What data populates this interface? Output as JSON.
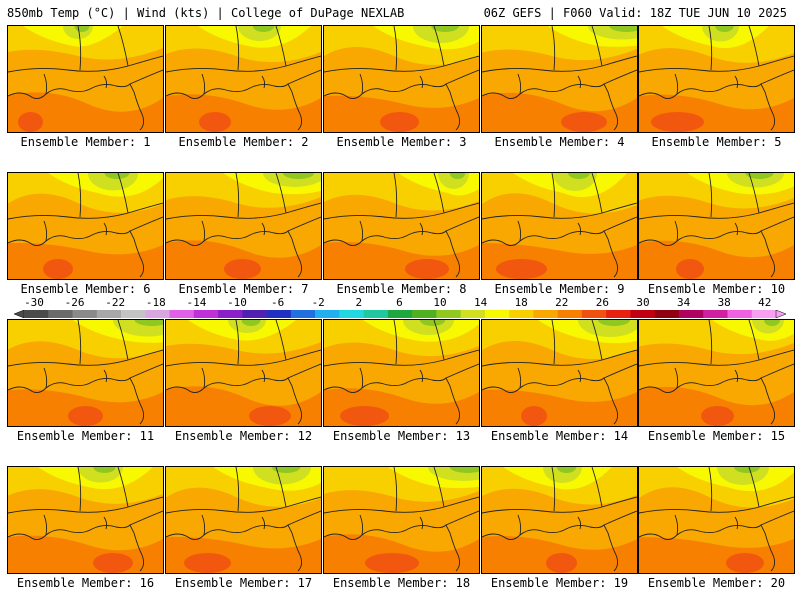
{
  "header": {
    "left": "850mb Temp (°C) | Wind (kts) | College of DuPage NEXLAB",
    "right": "06Z GEFS | F060 Valid: 18Z TUE JUN 10 2025"
  },
  "members": [
    {
      "label": "Ensemble Member: 1"
    },
    {
      "label": "Ensemble Member: 2"
    },
    {
      "label": "Ensemble Member: 3"
    },
    {
      "label": "Ensemble Member: 4"
    },
    {
      "label": "Ensemble Member: 5"
    },
    {
      "label": "Ensemble Member: 6"
    },
    {
      "label": "Ensemble Member: 7"
    },
    {
      "label": "Ensemble Member: 8"
    },
    {
      "label": "Ensemble Member: 9"
    },
    {
      "label": "Ensemble Member: 10"
    },
    {
      "label": "Ensemble Member: 11"
    },
    {
      "label": "Ensemble Member: 12"
    },
    {
      "label": "Ensemble Member: 13"
    },
    {
      "label": "Ensemble Member: 14"
    },
    {
      "label": "Ensemble Member: 15"
    },
    {
      "label": "Ensemble Member: 16"
    },
    {
      "label": "Ensemble Member: 17"
    },
    {
      "label": "Ensemble Member: 18"
    },
    {
      "label": "Ensemble Member: 19"
    },
    {
      "label": "Ensemble Member: 20"
    }
  ],
  "colorbar": {
    "labels": [
      "-30",
      "-26",
      "-22",
      "-18",
      "-14",
      "-10",
      "-6",
      "-2",
      "2",
      "6",
      "10",
      "14",
      "18",
      "22",
      "26",
      "30",
      "34",
      "38",
      "42"
    ],
    "colors": [
      "#4a4a4a",
      "#6a6a6a",
      "#8a8a8a",
      "#a8a8a8",
      "#c4c4c4",
      "#d9a6e0",
      "#e060e8",
      "#c030d8",
      "#8a20c8",
      "#5020b0",
      "#2030c0",
      "#2070e0",
      "#20b0f0",
      "#20d8e0",
      "#20c8a0",
      "#20a840",
      "#50b020",
      "#90c820",
      "#d0e020",
      "#f8f800",
      "#f8d000",
      "#f8a800",
      "#f88000",
      "#f05010",
      "#e82010",
      "#c00010",
      "#900010",
      "#b00060",
      "#d020a0",
      "#f060e0",
      "#f8a0f0"
    ]
  },
  "map_colors": {
    "base": "#f8a800",
    "warm": "#f88000",
    "hot": "#f05010",
    "mild": "#f8d000",
    "cool": "#f8f800",
    "cooler": "#d0e020",
    "coolest": "#90c820",
    "coldest": "#50b020"
  }
}
